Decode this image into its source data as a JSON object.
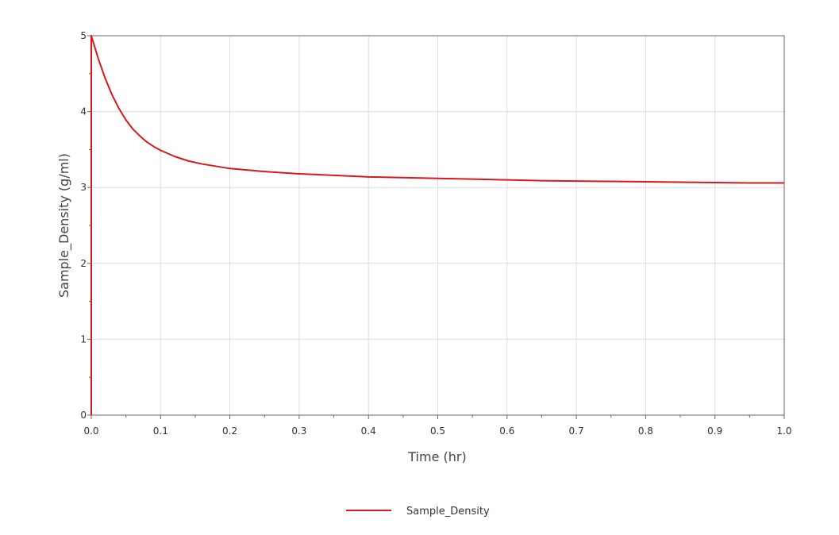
{
  "chart_data": {
    "type": "line",
    "xlabel": "Time (hr)",
    "ylabel": "Sample_Density (g/ml)",
    "xlim": [
      0.0,
      1.0
    ],
    "ylim": [
      0,
      5
    ],
    "x_ticks": [
      "0.0",
      "0.1",
      "0.2",
      "0.3",
      "0.4",
      "0.5",
      "0.6",
      "0.7",
      "0.8",
      "0.9",
      "1.0"
    ],
    "y_ticks": [
      "0",
      "1",
      "2",
      "3",
      "4",
      "5"
    ],
    "grid": true,
    "legend_position": "bottom-center",
    "series": [
      {
        "name": "Sample_Density",
        "color": "#d7191c",
        "x": [
          0.0,
          0.0,
          0.01,
          0.02,
          0.03,
          0.04,
          0.05,
          0.06,
          0.07,
          0.08,
          0.09,
          0.1,
          0.12,
          0.14,
          0.16,
          0.18,
          0.2,
          0.25,
          0.3,
          0.35,
          0.4,
          0.45,
          0.5,
          0.55,
          0.6,
          0.65,
          0.7,
          0.75,
          0.8,
          0.85,
          0.9,
          0.95,
          1.0
        ],
        "y": [
          0.0,
          5.0,
          4.7,
          4.44,
          4.22,
          4.04,
          3.89,
          3.77,
          3.68,
          3.6,
          3.54,
          3.49,
          3.41,
          3.35,
          3.31,
          3.28,
          3.25,
          3.21,
          3.18,
          3.16,
          3.14,
          3.13,
          3.12,
          3.11,
          3.1,
          3.09,
          3.085,
          3.08,
          3.075,
          3.07,
          3.065,
          3.06,
          3.06
        ]
      }
    ]
  }
}
